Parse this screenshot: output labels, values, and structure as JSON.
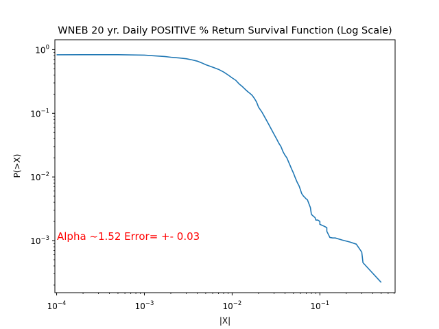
{
  "chart_data": {
    "type": "line",
    "title": "WNEB 20 yr. Daily POSITIVE % Return Survival Function (Log Scale)",
    "xlabel": "|X|",
    "ylabel": "P(>X)",
    "xscale": "log",
    "yscale": "log",
    "xlim": [
      9.55e-05,
      0.72
    ],
    "ylim": [
      0.000152,
      1.43
    ],
    "x_ticks": [
      {
        "value": 0.0001,
        "base": "10",
        "exp": "−4"
      },
      {
        "value": 0.001,
        "base": "10",
        "exp": "−3"
      },
      {
        "value": 0.01,
        "base": "10",
        "exp": "−2"
      },
      {
        "value": 0.1,
        "base": "10",
        "exp": "−1"
      }
    ],
    "y_ticks": [
      {
        "value": 1,
        "base": "10",
        "exp": "0"
      },
      {
        "value": 0.1,
        "base": "10",
        "exp": "−1"
      },
      {
        "value": 0.01,
        "base": "10",
        "exp": "−2"
      },
      {
        "value": 0.001,
        "base": "10",
        "exp": "−3"
      }
    ],
    "grid": false,
    "legend": "none",
    "line_color": "#1f77b4",
    "series": [
      {
        "x": [
          0.0001,
          0.0002,
          0.0005,
          0.001,
          0.0013,
          0.0017,
          0.002,
          0.0025,
          0.003,
          0.0035,
          0.004,
          0.0045,
          0.005,
          0.006,
          0.007,
          0.008,
          0.009,
          0.01,
          0.011,
          0.012,
          0.013,
          0.014,
          0.015,
          0.016,
          0.017,
          0.018,
          0.019,
          0.02,
          0.022,
          0.024,
          0.026,
          0.028,
          0.03,
          0.032,
          0.034,
          0.036,
          0.038,
          0.04,
          0.042,
          0.045,
          0.048,
          0.05,
          0.052,
          0.055,
          0.058,
          0.06,
          0.062,
          0.065,
          0.068,
          0.07,
          0.072,
          0.075,
          0.078,
          0.08,
          0.082,
          0.085,
          0.088,
          0.09,
          0.095,
          0.1,
          0.1,
          0.11,
          0.12,
          0.12,
          0.13,
          0.14,
          0.15,
          0.18,
          0.22,
          0.26,
          0.3,
          0.31,
          0.5
        ],
        "y": [
          0.83,
          0.833,
          0.833,
          0.82,
          0.8,
          0.78,
          0.76,
          0.74,
          0.72,
          0.69,
          0.66,
          0.62,
          0.58,
          0.53,
          0.49,
          0.445,
          0.4,
          0.36,
          0.33,
          0.29,
          0.265,
          0.24,
          0.22,
          0.205,
          0.19,
          0.17,
          0.15,
          0.125,
          0.103,
          0.083,
          0.068,
          0.056,
          0.047,
          0.04,
          0.034,
          0.03,
          0.025,
          0.022,
          0.02,
          0.016,
          0.013,
          0.0115,
          0.01,
          0.0083,
          0.0072,
          0.0063,
          0.0055,
          0.005,
          0.0047,
          0.0045,
          0.0044,
          0.0038,
          0.0033,
          0.0026,
          0.0025,
          0.0024,
          0.0023,
          0.0021,
          0.0021,
          0.002,
          0.0018,
          0.0017,
          0.0016,
          0.0014,
          0.00112,
          0.0011,
          0.0011,
          0.00102,
          0.00095,
          0.00088,
          0.00066,
          0.00045,
          0.00022
        ]
      }
    ],
    "annotation": {
      "text": "Alpha ~1.52  Error= +- 0.03",
      "color": "#ff0000"
    }
  }
}
